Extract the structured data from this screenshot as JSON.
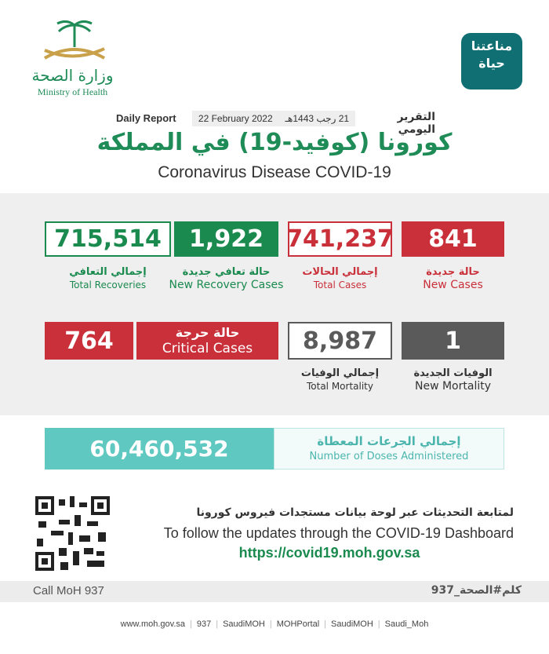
{
  "header": {
    "app_logo": [
      "مناعتنا",
      "حياة"
    ],
    "ministry_ar": "وزارة الصحة",
    "ministry_en": "Ministry of Health",
    "report_ar": "التقرير اليومي",
    "report_en": "Daily Report",
    "date_hijri": "21 رجب 1443هـ",
    "date_gregorian": "22 February 2022",
    "title_ar": "كورونا (كوفيد-19) في المملكة",
    "title_en": "Coronavirus Disease COVID-19"
  },
  "stats": [
    {
      "value": "841",
      "label_ar": "حالة جديدة",
      "label_en": "New Cases"
    },
    {
      "value": "741,237",
      "label_ar": "إجمالي الحالات",
      "label_en": "Total Cases"
    },
    {
      "value": "1,922",
      "label_ar": "حالة تعافي جديدة",
      "label_en": "New Recovery Cases"
    },
    {
      "value": "715,514",
      "label_ar": "إجمالي التعافي",
      "label_en": "Total Recoveries"
    },
    {
      "value": "1",
      "label_ar": "الوفيات الجديدة",
      "label_en": "New Mortality"
    },
    {
      "value": "8,987",
      "label_ar": "إجمالي الوفيات",
      "label_en": "Total Mortality"
    },
    {
      "value": "764",
      "label_ar": "حالة حرجة",
      "label_en": "Critical Cases"
    }
  ],
  "doses": {
    "value": "60,460,532",
    "label_ar": "إجمالي الجرعات المعطاة",
    "label_en": "Number of Doses Administered"
  },
  "footer": {
    "follow_ar": "لمتابعة التحديثات عبر لوحة بيانات مستجدات فيروس كورونا",
    "follow_en": "To follow the updates through the COVID-19 Dashboard",
    "url": "https://covid19.moh.gov.sa",
    "call": "Call MoH 937",
    "hashtag": "كلم#الصحة_937",
    "social": [
      "www.moh.gov.sa",
      "937",
      "SaudiMOH",
      "MOHPortal",
      "SaudiMOH",
      "Saudi_Moh"
    ]
  }
}
